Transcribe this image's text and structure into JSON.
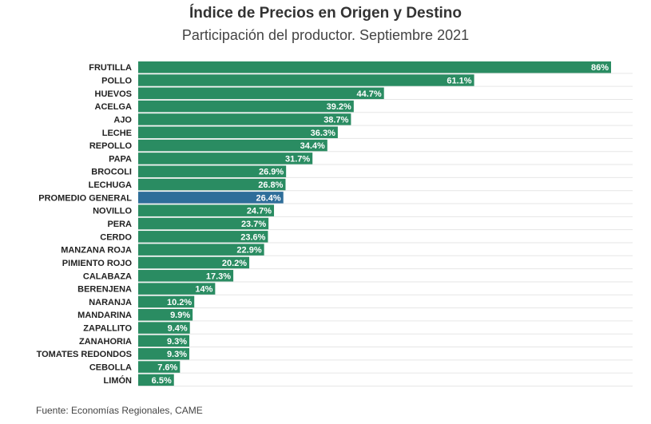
{
  "chart_data": {
    "type": "bar",
    "orientation": "horizontal",
    "title": "Índice de Precios en Origen y Destino",
    "subtitle": "Participación del productor. Septiembre 2021",
    "source": "Fuente: Economías Regionales, CAME",
    "categories": [
      "FRUTILLA",
      "POLLO",
      "HUEVOS",
      "ACELGA",
      "AJO",
      "LECHE",
      "REPOLLO",
      "PAPA",
      "BROCOLI",
      "LECHUGA",
      "PROMEDIO GENERAL",
      "NOVILLO",
      "PERA",
      "CERDO",
      "MANZANA ROJA",
      "PIMIENTO ROJO",
      "CALABAZA",
      "BERENJENA",
      "NARANJA",
      "MANDARINA",
      "ZAPALLITO",
      "ZANAHORIA",
      "TOMATES REDONDOS",
      "CEBOLLA",
      "LIMÓN"
    ],
    "values": [
      86,
      61.1,
      44.7,
      39.2,
      38.7,
      36.3,
      34.4,
      31.7,
      26.9,
      26.8,
      26.4,
      24.7,
      23.7,
      23.6,
      22.9,
      20.2,
      17.3,
      14,
      10.2,
      9.9,
      9.4,
      9.3,
      9.3,
      7.6,
      6.5
    ],
    "value_labels": [
      "86%",
      "61.1%",
      "44.7%",
      "39.2%",
      "38.7%",
      "36.3%",
      "34.4%",
      "31.7%",
      "26.9%",
      "26.8%",
      "26.4%",
      "24.7%",
      "23.7%",
      "23.6%",
      "22.9%",
      "20.2%",
      "17.3%",
      "14%",
      "10.2%",
      "9.9%",
      "9.4%",
      "9.3%",
      "9.3%",
      "7.6%",
      "6.5%"
    ],
    "highlight_category": "PROMEDIO GENERAL",
    "xlim": [
      0,
      86
    ],
    "colors": {
      "bar": "#2a8c62",
      "highlight": "#2f6e9a",
      "value_text": "#ffffff",
      "gridline": "#e6e6e6"
    },
    "grid": true
  }
}
